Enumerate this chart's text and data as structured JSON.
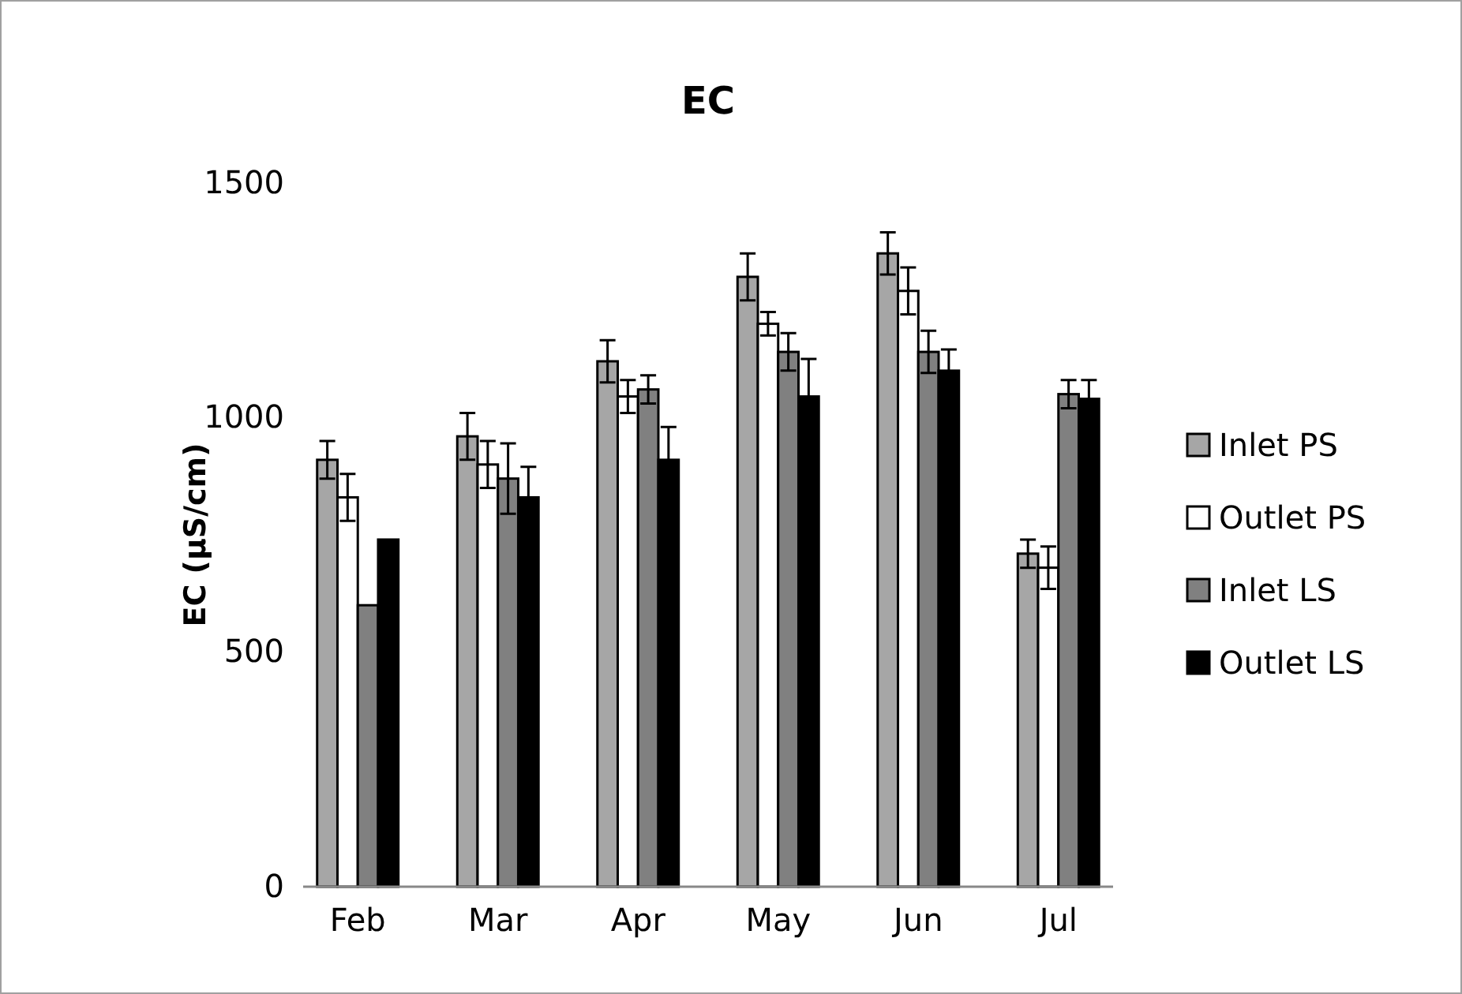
{
  "chart_data": {
    "type": "bar",
    "title": "EC",
    "ylabel": "EC (µS/cm)",
    "categories": [
      "Feb",
      "Mar",
      "Apr",
      "May",
      "Jun",
      "Jul"
    ],
    "series": [
      {
        "name": "Inlet PS",
        "color": "#a6a6a6",
        "values": [
          910,
          960,
          1120,
          1300,
          1350,
          710
        ],
        "errors": [
          40,
          50,
          45,
          50,
          45,
          30
        ]
      },
      {
        "name": "Outlet PS",
        "color": "#ffffff",
        "values": [
          830,
          900,
          1045,
          1200,
          1270,
          680
        ],
        "errors": [
          50,
          50,
          35,
          25,
          50,
          45
        ]
      },
      {
        "name": "Inlet LS",
        "color": "#808080",
        "values": [
          600,
          870,
          1060,
          1140,
          1140,
          1050
        ],
        "errors": [
          null,
          75,
          30,
          40,
          45,
          30
        ]
      },
      {
        "name": "Outlet LS",
        "color": "#000000",
        "values": [
          740,
          830,
          910,
          1045,
          1100,
          1040
        ],
        "errors": [
          null,
          65,
          70,
          80,
          45,
          40
        ]
      }
    ],
    "ylim": [
      0,
      1500
    ],
    "yticks": [
      0,
      500,
      1000,
      1500
    ],
    "grid": false,
    "legend": "right"
  }
}
